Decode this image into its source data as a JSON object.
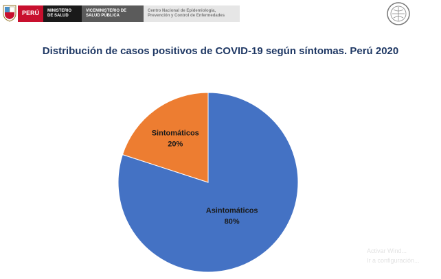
{
  "header": {
    "peru_label": "PERÚ",
    "ministerio_label": "MINISTERIO DE SALUD",
    "viceministerio_label": "VICEMINISTERIO DE SALUD PÚBLICA",
    "centro_label": "Centro Nacional de Epidemiología, Prevención y Control de Enfermedades"
  },
  "colors": {
    "brand_red": "#c8102e",
    "title_blue": "#1f3864",
    "slice_blue": "#4472c4",
    "slice_orange": "#ed7d31"
  },
  "watermark": {
    "line1": "Activar Wind...",
    "line2": "Ir a configuración..."
  },
  "chart_data": {
    "type": "pie",
    "title": "Distribución de casos positivos de COVID-19 según síntomas. Perú 2020",
    "slices": [
      {
        "label": "Asintomáticos",
        "value": 80,
        "value_label": "80%",
        "color": "#4472c4"
      },
      {
        "label": "Sintomáticos",
        "value": 20,
        "value_label": "20%",
        "color": "#ed7d31"
      }
    ],
    "start_angle_deg": 0,
    "direction": "clockwise",
    "legend": "none"
  }
}
